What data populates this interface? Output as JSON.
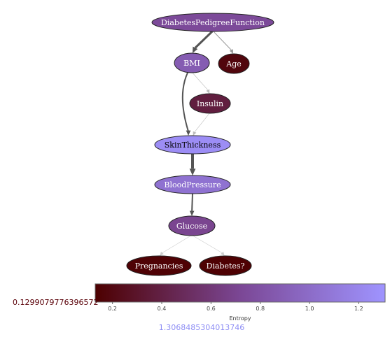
{
  "graph": {
    "nodes": [
      {
        "id": "DiabetesPedigreeFunction",
        "label": "DiabetesPedigreeFunction",
        "entropy": 0.74
      },
      {
        "id": "BMI",
        "label": "BMI",
        "entropy": 0.88
      },
      {
        "id": "Age",
        "label": "Age",
        "entropy": 0.18
      },
      {
        "id": "Insulin",
        "label": "Insulin",
        "entropy": 0.38
      },
      {
        "id": "SkinThickness",
        "label": "SkinThickness",
        "entropy": 1.25
      },
      {
        "id": "BloodPressure",
        "label": "BloodPressure",
        "entropy": 1.05
      },
      {
        "id": "Glucose",
        "label": "Glucose",
        "entropy": 0.7
      },
      {
        "id": "Pregnancies",
        "label": "Pregnancies",
        "entropy": 0.15
      },
      {
        "id": "Diabetes",
        "label": "Diabetes?",
        "entropy": 0.14
      }
    ],
    "edges": [
      {
        "from": "DiabetesPedigreeFunction",
        "to": "BMI",
        "weight": 3,
        "color": "#555555"
      },
      {
        "from": "DiabetesPedigreeFunction",
        "to": "Age",
        "weight": 1,
        "color": "#999999"
      },
      {
        "from": "BMI",
        "to": "Insulin",
        "weight": 0.6,
        "color": "#bbbbbb"
      },
      {
        "from": "BMI",
        "to": "SkinThickness",
        "weight": 2,
        "color": "#555555"
      },
      {
        "from": "Insulin",
        "to": "SkinThickness",
        "weight": 0.6,
        "color": "#bbbbbb"
      },
      {
        "from": "SkinThickness",
        "to": "BloodPressure",
        "weight": 4,
        "color": "#555555"
      },
      {
        "from": "BloodPressure",
        "to": "Glucose",
        "weight": 2,
        "color": "#555555"
      },
      {
        "from": "Glucose",
        "to": "Pregnancies",
        "weight": 0.6,
        "color": "#cccccc"
      },
      {
        "from": "Glucose",
        "to": "Diabetes",
        "weight": 0.6,
        "color": "#cccccc"
      }
    ]
  },
  "colorbar": {
    "label": "Entropy",
    "min_value_text": "0.1299079776396572",
    "max_value_text": "1.3068485304013746",
    "min": 0.1299079776396572,
    "max": 1.3068485304013746,
    "ticks": [
      "0.2",
      "0.4",
      "0.6",
      "0.8",
      "1.0",
      "1.2"
    ],
    "color_low": "#4d0000",
    "color_mid": "#7b4795",
    "color_high": "#9f94ff"
  }
}
